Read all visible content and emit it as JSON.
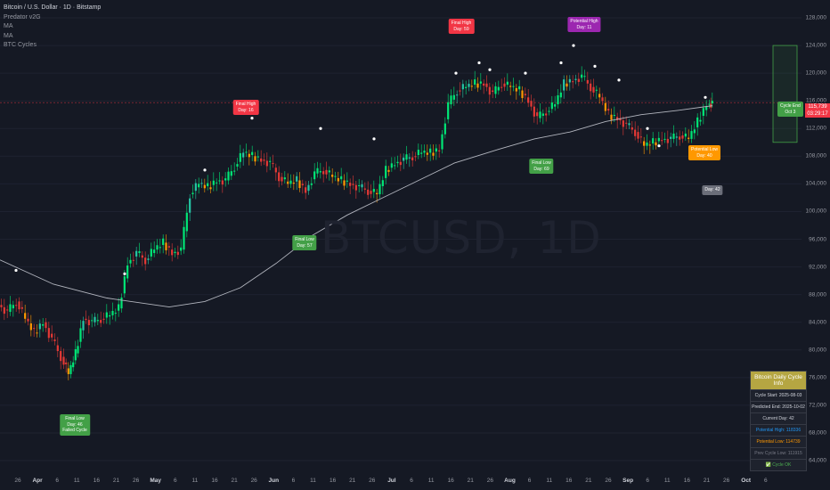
{
  "header": {
    "symbol_line": "Bitcoin / U.S. Dollar · 1D · Bitstamp",
    "indicators": [
      "Predator v2G",
      "MA",
      "MA",
      "BTC Cycles"
    ]
  },
  "watermark": "BTCUSD, 1D",
  "chart_data": {
    "type": "candlestick",
    "y_ticks": [
      "128,000",
      "124,000",
      "120,000",
      "116,000",
      "112,000",
      "108,000",
      "104,000",
      "100,000",
      "96,000",
      "92,000",
      "88,000",
      "84,000",
      "80,000",
      "76,000",
      "72,000",
      "68,000",
      "64,000"
    ],
    "ylim": [
      64000,
      128000
    ],
    "x_ticks": [
      "26",
      "Apr",
      "6",
      "11",
      "16",
      "21",
      "26",
      "May",
      "6",
      "11",
      "16",
      "21",
      "26",
      "Jun",
      "6",
      "11",
      "16",
      "21",
      "26",
      "Jul",
      "6",
      "11",
      "16",
      "21",
      "26",
      "Aug",
      "6",
      "11",
      "16",
      "21",
      "26",
      "Sep",
      "6",
      "11",
      "16",
      "21",
      "26",
      "Oct",
      "6"
    ],
    "x_major": [
      "Apr",
      "May",
      "Jun",
      "Jul",
      "Aug",
      "Sep",
      "Oct"
    ],
    "last_price": "115,739",
    "countdown": "03:29:17",
    "colors": {
      "up": "#00e676",
      "down": "#e53935",
      "teal": "#26c6a6",
      "orange": "#ff9800",
      "ma": "#b2b5be"
    }
  },
  "labels": [
    {
      "id": "final-low-apr",
      "lines": [
        "Final Low",
        "Day: 46",
        "Failed Cycle"
      ],
      "color": "green"
    },
    {
      "id": "final-high-may",
      "lines": [
        "Final High",
        "Day: 16"
      ],
      "color": "red"
    },
    {
      "id": "final-low-jun",
      "lines": [
        "Final Low",
        "Day: 57"
      ],
      "color": "green"
    },
    {
      "id": "final-high-jul",
      "lines": [
        "Final High",
        "Day: 59"
      ],
      "color": "red"
    },
    {
      "id": "final-low-aug",
      "lines": [
        "Final Low",
        "Day: 69"
      ],
      "color": "green"
    },
    {
      "id": "potential-high",
      "lines": [
        "Potential High",
        "Day: 11"
      ],
      "color": "purple"
    },
    {
      "id": "potential-low",
      "lines": [
        "Potential Low",
        "Day: 40"
      ],
      "color": "orange"
    },
    {
      "id": "day-42",
      "lines": [
        "Day: 42"
      ],
      "color": "gray"
    }
  ],
  "cycle_end": {
    "lines": [
      "Cycle End",
      "Oct 3"
    ]
  },
  "info_panel": {
    "title": "Bitcoin Daily Cycle Info",
    "rows": [
      {
        "text": "Cycle Start: 2025-08-03",
        "style": "normal"
      },
      {
        "text": "Predicted End: 2025-10-02",
        "style": "normal"
      },
      {
        "text": "Current Day: 42",
        "style": "normal"
      },
      {
        "text": "Potential High: 118336",
        "style": "blue"
      },
      {
        "text": "Potential Low: 114739",
        "style": "orange"
      },
      {
        "text": "Prev Cycle Low: 111915",
        "style": "gray"
      },
      {
        "text": "✅ Cycle OK",
        "style": "ok"
      }
    ]
  }
}
